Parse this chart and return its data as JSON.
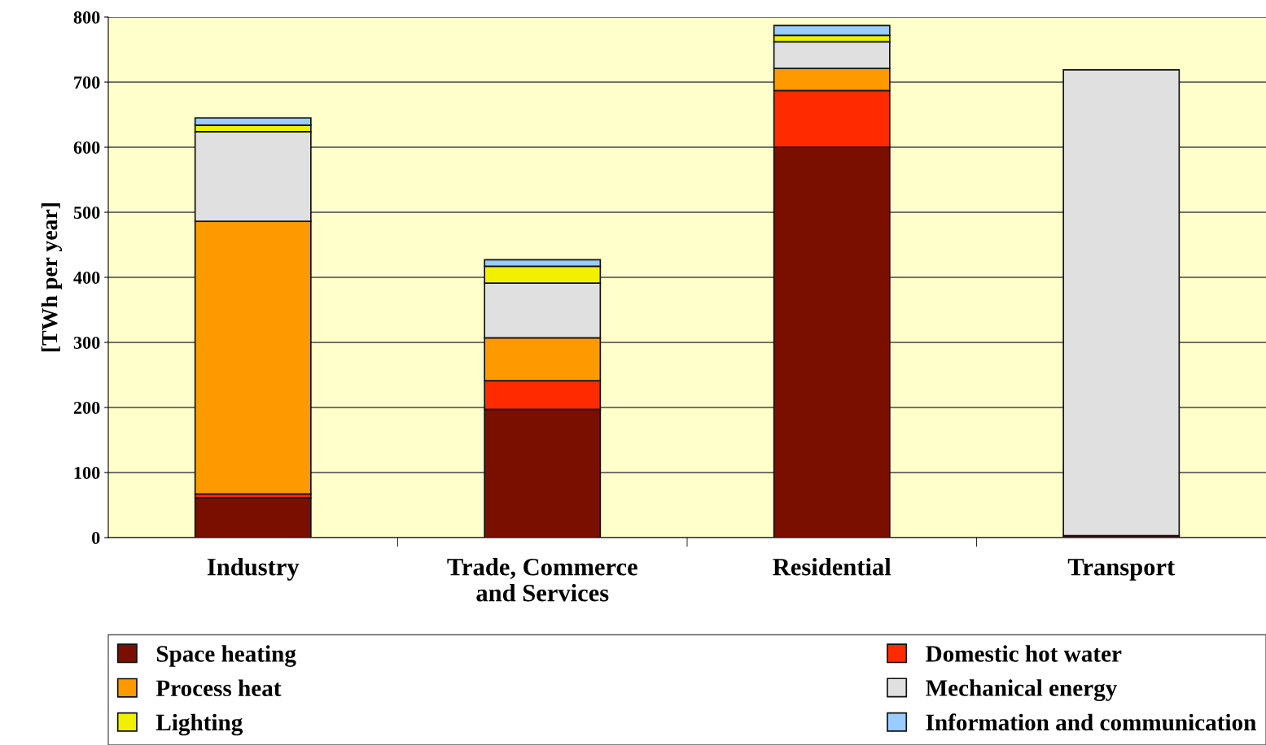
{
  "chart_data": {
    "type": "bar",
    "stacked": true,
    "ylabel": "[TWh per year]",
    "categories": [
      "Industry",
      "Trade, Commerce\nand Services",
      "Residential",
      "Transport"
    ],
    "series": [
      {
        "name": "Space heating",
        "color": "#7a0f00",
        "values": [
          61,
          197,
          600,
          3
        ]
      },
      {
        "name": "Domestic hot water",
        "color": "#ff2a00",
        "values": [
          6,
          44,
          87,
          null
        ]
      },
      {
        "name": "Process heat",
        "color": "#ff9900",
        "values": [
          419,
          66,
          34,
          null
        ]
      },
      {
        "name": "Mechanical energy",
        "color": "#e0e0e0",
        "values": [
          138,
          84,
          41,
          716
        ]
      },
      {
        "name": "Lighting",
        "color": "#f0f000",
        "values": [
          10,
          26,
          10,
          null
        ]
      },
      {
        "name": "Information and communication",
        "color": "#99ccff",
        "values": [
          11,
          10,
          15,
          null
        ]
      }
    ],
    "ylim": [
      0,
      800
    ],
    "yticks": [
      0,
      100,
      200,
      300,
      400,
      500,
      600,
      700,
      800
    ],
    "grid": "y",
    "legend": "bottom"
  }
}
